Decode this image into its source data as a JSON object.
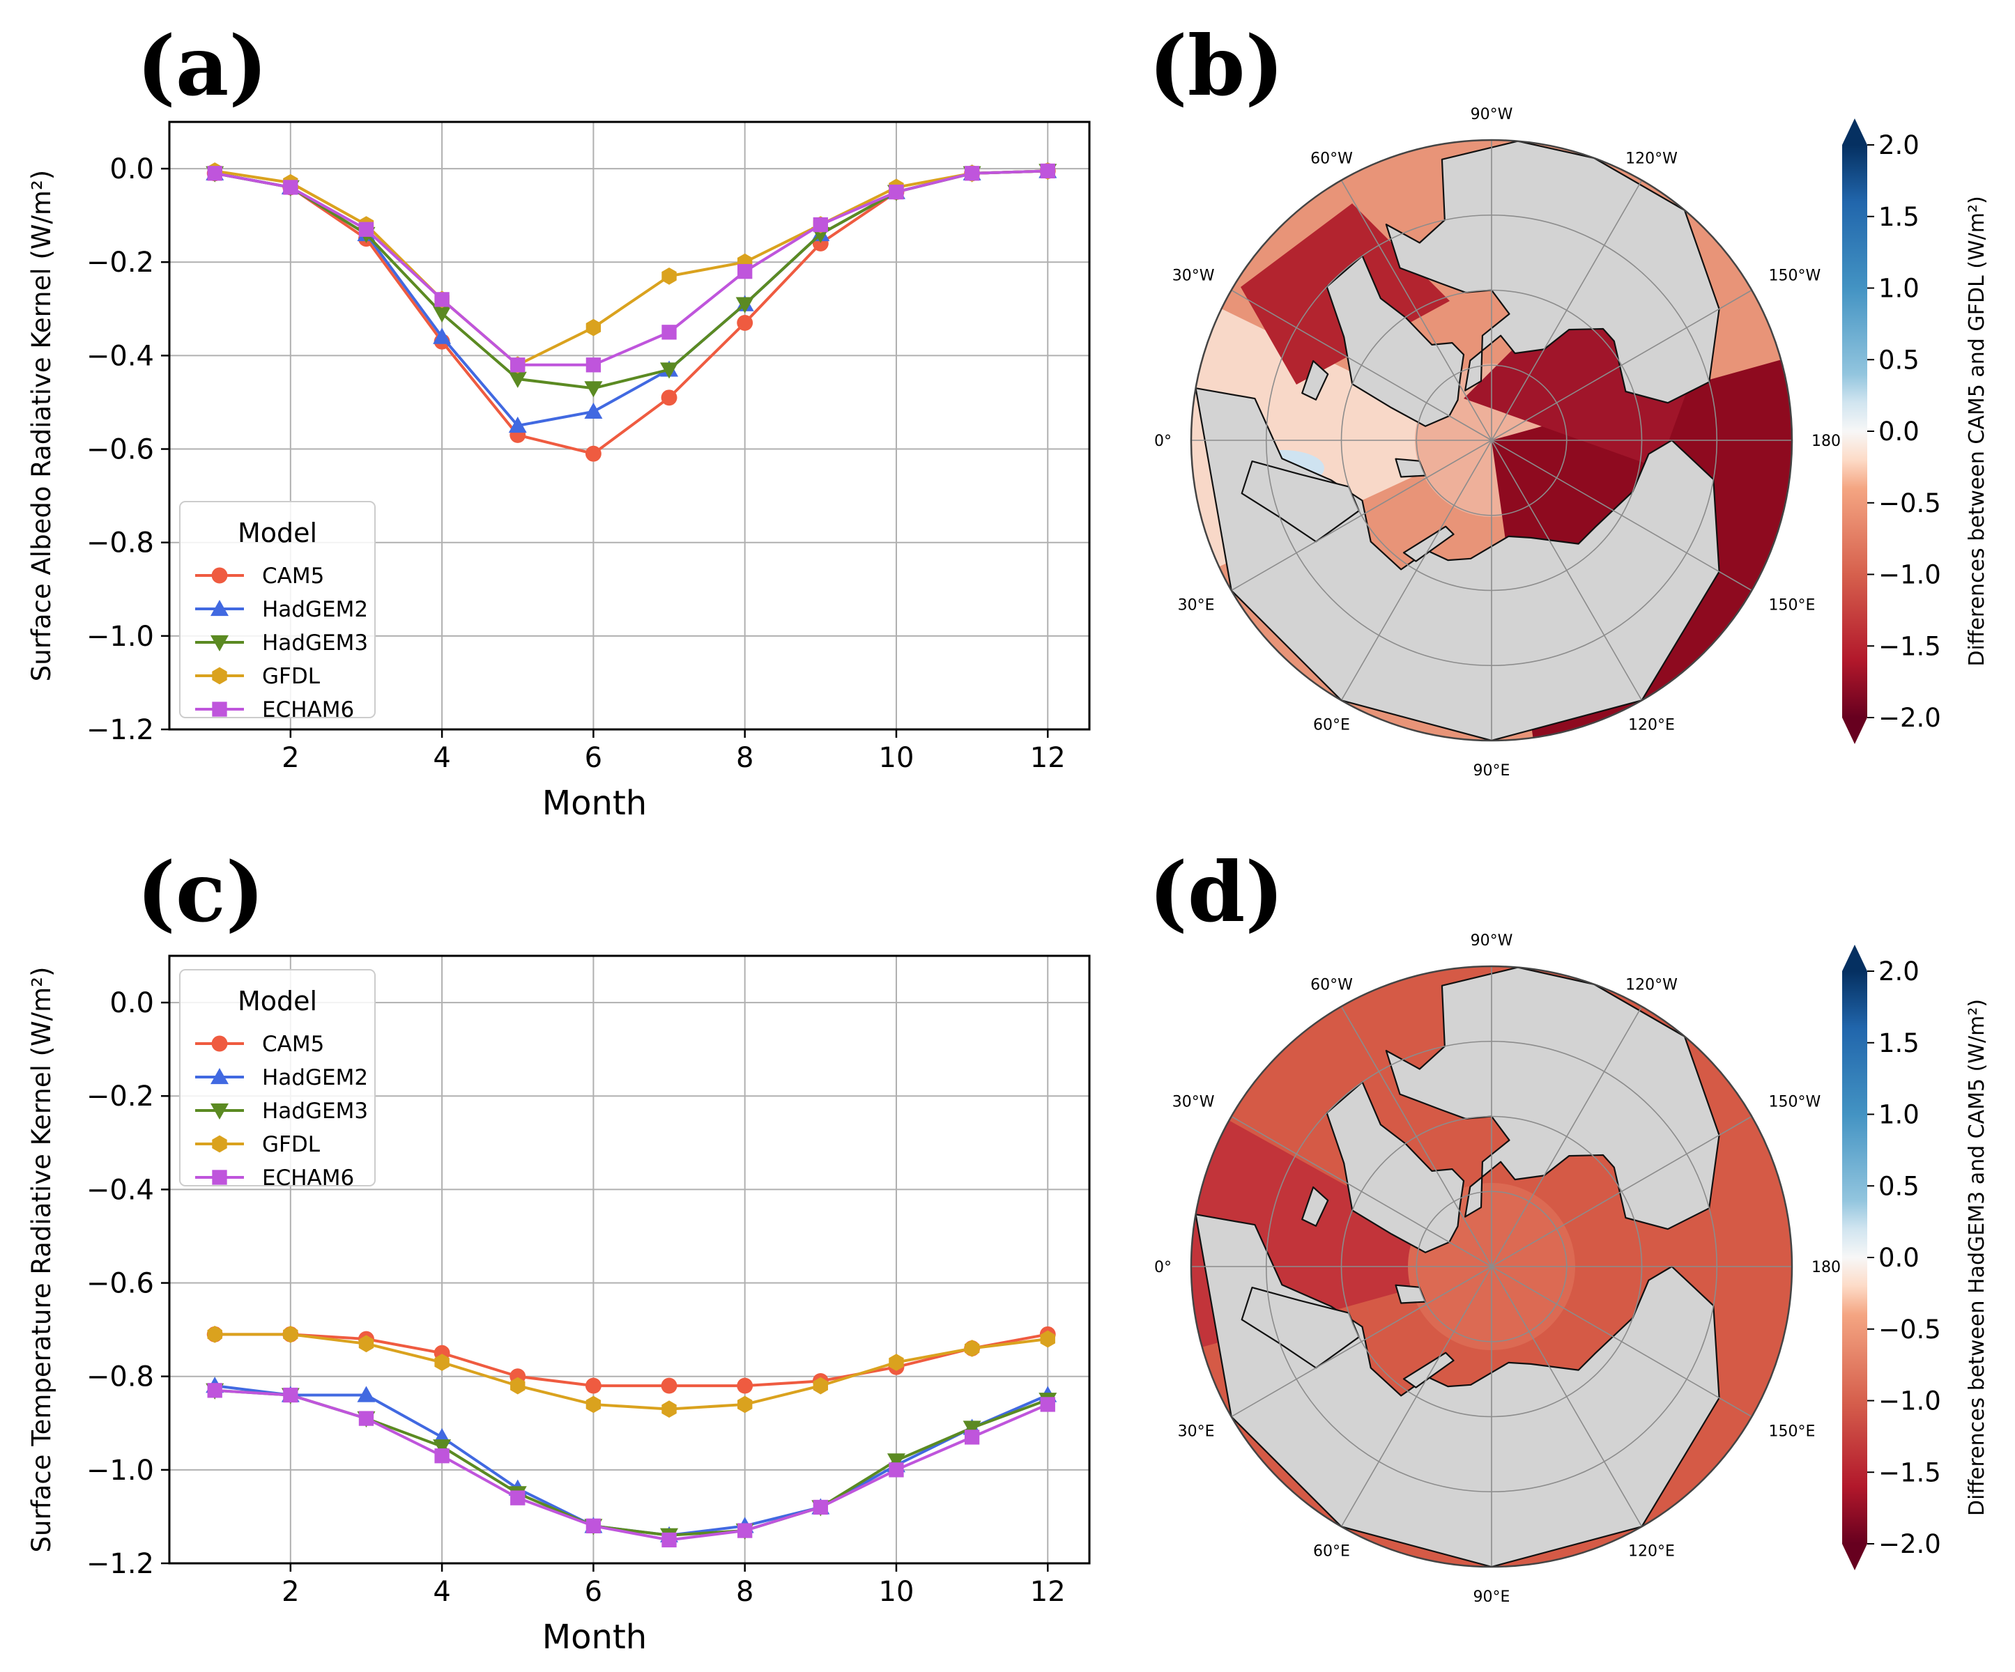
{
  "panel_labels": {
    "a": "(a)",
    "b": "(b)",
    "c": "(c)",
    "d": "(d)"
  },
  "colors": {
    "CAM5": "#ef5b40",
    "HadGEM2": "#4169e1",
    "HadGEM3": "#5b8a22",
    "GFDL": "#daa21e",
    "ECHAM6": "#bf55dc",
    "land": "#d3d3d3",
    "grid": "#8c8c8c"
  },
  "markers": {
    "CAM5": "circle",
    "HadGEM2": "triangle-up",
    "HadGEM3": "triangle-down",
    "GFDL": "hexagon",
    "ECHAM6": "square"
  },
  "legend_title": "Model",
  "chart_data": [
    {
      "id": "a",
      "type": "line",
      "xlabel": "Month",
      "ylabel": "Surface Albedo Radiative Kernel (W/m²)",
      "xlim": [
        0.4,
        12.55
      ],
      "ylim": [
        -1.2,
        0.1
      ],
      "xticks": [
        2,
        4,
        6,
        8,
        10,
        12
      ],
      "yticks": [
        0.0,
        -0.2,
        -0.4,
        -0.6,
        -0.8,
        -1.0,
        -1.2
      ],
      "ytick_labels": [
        "0.0",
        "−0.2",
        "−0.4",
        "−0.6",
        "−0.8",
        "−1.0",
        "−1.2"
      ],
      "grid": true,
      "legend_position": "lower-left",
      "x": [
        1,
        2,
        3,
        4,
        5,
        6,
        7,
        8,
        9,
        10,
        11,
        12
      ],
      "series": [
        {
          "name": "CAM5",
          "values": [
            -0.01,
            -0.04,
            -0.15,
            -0.37,
            -0.57,
            -0.61,
            -0.49,
            -0.33,
            -0.16,
            -0.05,
            -0.01,
            -0.005
          ]
        },
        {
          "name": "HadGEM2",
          "values": [
            -0.01,
            -0.04,
            -0.14,
            -0.36,
            -0.55,
            -0.52,
            -0.43,
            -0.29,
            -0.14,
            -0.05,
            -0.01,
            -0.005
          ]
        },
        {
          "name": "HadGEM3",
          "values": [
            -0.01,
            -0.04,
            -0.14,
            -0.31,
            -0.45,
            -0.47,
            -0.43,
            -0.29,
            -0.14,
            -0.05,
            -0.01,
            -0.005
          ]
        },
        {
          "name": "GFDL",
          "values": [
            -0.005,
            -0.03,
            -0.12,
            -0.28,
            -0.42,
            -0.34,
            -0.23,
            -0.2,
            -0.12,
            -0.04,
            -0.01,
            -0.005
          ]
        },
        {
          "name": "ECHAM6",
          "values": [
            -0.01,
            -0.04,
            -0.13,
            -0.28,
            -0.42,
            -0.42,
            -0.35,
            -0.22,
            -0.12,
            -0.05,
            -0.01,
            -0.005
          ]
        }
      ]
    },
    {
      "id": "c",
      "type": "line",
      "xlabel": "Month",
      "ylabel": "Surface Temperature Radiative Kernel (W/m²)",
      "xlim": [
        0.4,
        12.55
      ],
      "ylim": [
        -1.2,
        0.1
      ],
      "xticks": [
        2,
        4,
        6,
        8,
        10,
        12
      ],
      "yticks": [
        0.0,
        -0.2,
        -0.4,
        -0.6,
        -0.8,
        -1.0,
        -1.2
      ],
      "ytick_labels": [
        "0.0",
        "−0.2",
        "−0.4",
        "−0.6",
        "−0.8",
        "−1.0",
        "−1.2"
      ],
      "grid": true,
      "legend_position": "upper-left",
      "x": [
        1,
        2,
        3,
        4,
        5,
        6,
        7,
        8,
        9,
        10,
        11,
        12
      ],
      "series": [
        {
          "name": "CAM5",
          "values": [
            -0.71,
            -0.71,
            -0.72,
            -0.75,
            -0.8,
            -0.82,
            -0.82,
            -0.82,
            -0.81,
            -0.78,
            -0.74,
            -0.71
          ]
        },
        {
          "name": "HadGEM2",
          "values": [
            -0.82,
            -0.84,
            -0.84,
            -0.93,
            -1.04,
            -1.12,
            -1.14,
            -1.12,
            -1.08,
            -0.99,
            -0.91,
            -0.84
          ]
        },
        {
          "name": "HadGEM3",
          "values": [
            -0.83,
            -0.84,
            -0.89,
            -0.95,
            -1.05,
            -1.12,
            -1.14,
            -1.13,
            -1.08,
            -0.98,
            -0.91,
            -0.85
          ]
        },
        {
          "name": "GFDL",
          "values": [
            -0.71,
            -0.71,
            -0.73,
            -0.77,
            -0.82,
            -0.86,
            -0.87,
            -0.86,
            -0.82,
            -0.77,
            -0.74,
            -0.72
          ]
        },
        {
          "name": "ECHAM6",
          "values": [
            -0.83,
            -0.84,
            -0.89,
            -0.97,
            -1.06,
            -1.12,
            -1.15,
            -1.13,
            -1.08,
            -1.0,
            -0.93,
            -0.86
          ]
        }
      ]
    },
    {
      "id": "b",
      "type": "heatmap",
      "projection": "north-polar-stereographic",
      "colorbar_label": "Differences between CAM5 and GFDL (W/m²)",
      "colorbar_range": [
        -2.0,
        2.0
      ],
      "colorbar_ticks": [
        "2.0",
        "1.5",
        "1.0",
        "0.5",
        "0.0",
        "−0.5",
        "−1.0",
        "−1.5",
        "−2.0"
      ],
      "colorbar_tick_values": [
        2.0,
        1.5,
        1.0,
        0.5,
        0.0,
        -0.5,
        -1.0,
        -1.5,
        -2.0
      ],
      "lon_labels": {
        "top": "90°W",
        "tl": "60°W",
        "tr": "120°W",
        "ul": "30°W",
        "ur": "150°W",
        "left": "0°",
        "right": "180°",
        "ll": "30°E",
        "lr": "150°E",
        "bl": "60°E",
        "br": "120°E",
        "bottom": "90°E"
      }
    },
    {
      "id": "d",
      "type": "heatmap",
      "projection": "north-polar-stereographic",
      "colorbar_label": "Differences between HadGEM3 and CAM5 (W/m²)",
      "colorbar_range": [
        -2.0,
        2.0
      ],
      "colorbar_ticks": [
        "2.0",
        "1.5",
        "1.0",
        "0.5",
        "0.0",
        "−0.5",
        "−1.0",
        "−1.5",
        "−2.0"
      ],
      "colorbar_tick_values": [
        2.0,
        1.5,
        1.0,
        0.5,
        0.0,
        -0.5,
        -1.0,
        -1.5,
        -2.0
      ],
      "lon_labels": {
        "top": "90°W",
        "tl": "60°W",
        "tr": "120°W",
        "ul": "30°W",
        "ur": "150°W",
        "left": "0°",
        "right": "180°",
        "ll": "30°E",
        "lr": "150°E",
        "bl": "60°E",
        "br": "120°E",
        "bottom": "90°E"
      }
    }
  ]
}
